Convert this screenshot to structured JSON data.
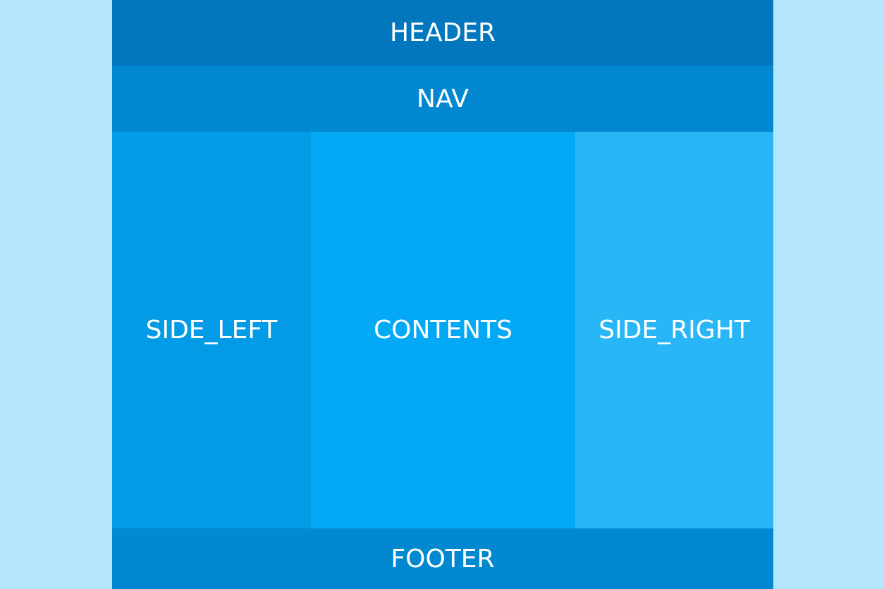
{
  "regions": {
    "header": "HEADER",
    "nav": "NAV",
    "side_left": "SIDE_LEFT",
    "contents": "CONTENTS",
    "side_right": "SIDE_RIGHT",
    "footer": "FOOTER"
  },
  "faint_note": "",
  "colors": {
    "background": "#b3e5fc",
    "header": "#0277bd",
    "nav": "#0288d1",
    "side_left": "#039be5",
    "contents": "#03a9f4",
    "side_right": "#29b6f6",
    "footer": "#0288d1",
    "text": "#ffffff"
  }
}
